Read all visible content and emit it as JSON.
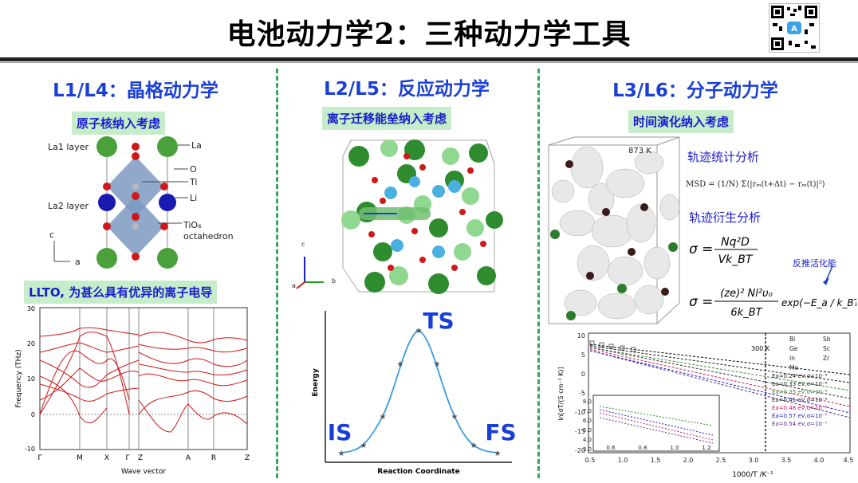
{
  "title": "电池动力学2：三种动力学工具",
  "columns": [
    {
      "heading": "L1/L4：晶格动力学",
      "tag": "原子核纳入考虑",
      "tag2": "LLTO, 为甚么具有优异的离子电导",
      "structure_labels": {
        "la1": "La1 layer",
        "la2": "La2 layer",
        "la": "La",
        "o": "O",
        "ti": "Ti",
        "li": "Li",
        "tio6": "TiO₆",
        "octa": "octahedron",
        "c_axis": "c",
        "a_axis": "a"
      },
      "phonon": {
        "ylabel": "Frequency (THz)",
        "xlabel": "Wave vector",
        "yticks": [
          "30",
          "20",
          "10",
          "0",
          "-10"
        ],
        "xticks": [
          "Γ",
          "M",
          "X",
          "Γ",
          "Z",
          "A",
          "R",
          "Z"
        ]
      }
    },
    {
      "heading": "L2/L5：反应动力学",
      "tag": "离子迁移能垒纳入考虑",
      "axes_labels": {
        "c": "c",
        "b": "b",
        "a": "a"
      },
      "energy": {
        "ts": "TS",
        "is": "IS",
        "fs": "FS",
        "ylabel": "Energy",
        "xlabel": "Reaction Coordinate"
      }
    },
    {
      "heading": "L3/L6：分子动力学",
      "tag": "时间演化纳入考虑",
      "temp": "873 K",
      "track1": "轨迹统计分析",
      "track2": "轨迹衍生分析",
      "inverse": "反推活化能",
      "msd": "MSD = (1/N) Σ⟨|rₘ(t+Δt) − rₘ(t)|²⟩",
      "sigma1_lhs": "σ =",
      "sigma1_num": "Nq²D",
      "sigma1_den": "Vk_BT",
      "sigma2_lhs": "σ =",
      "sigma2_num": "(ze)² Nl²υ₀",
      "sigma2_den": "6k_BT",
      "sigma2_exp": "exp(−E_a / k_BT)",
      "arrhenius": {
        "ylabel": "ln[σT/(S cm⁻¹ K)]",
        "xlabel": "1000/T /K⁻¹",
        "yticks": [
          "10",
          "5",
          "0",
          "-5",
          "-10",
          "-15",
          "-20"
        ],
        "xticks": [
          "0.5",
          "1.0",
          "1.5",
          "2.0",
          "2.5",
          "3.0",
          "3.5",
          "4.0",
          "4.5"
        ],
        "marker_300k": "300 K",
        "legend": [
          "Bi",
          "Sb",
          "Ge",
          "Sc",
          "In",
          "Zr",
          "Mo"
        ],
        "ea_labels": [
          "Ea=0.24 eV,σ=10⁻³",
          "Ea=0.33 eV,σ=10⁻⁴",
          "Ea=0.35 eV,σ=10⁻⁴",
          "Ea=0.41 eV,σ=10⁻⁵",
          "Ea=0.48 eV,σ=10⁻⁶",
          "Ea=0.57 eV,σ=10⁻⁷",
          "Ea=0.54 eV,σ=10⁻⁷"
        ],
        "inset_yticks": [
          "8.0",
          "7.0",
          "6.0",
          "5.0",
          "4.0",
          "3.0"
        ],
        "inset_xticks": [
          "0.6",
          "0.8",
          "1.0",
          "1.2"
        ]
      }
    }
  ]
}
